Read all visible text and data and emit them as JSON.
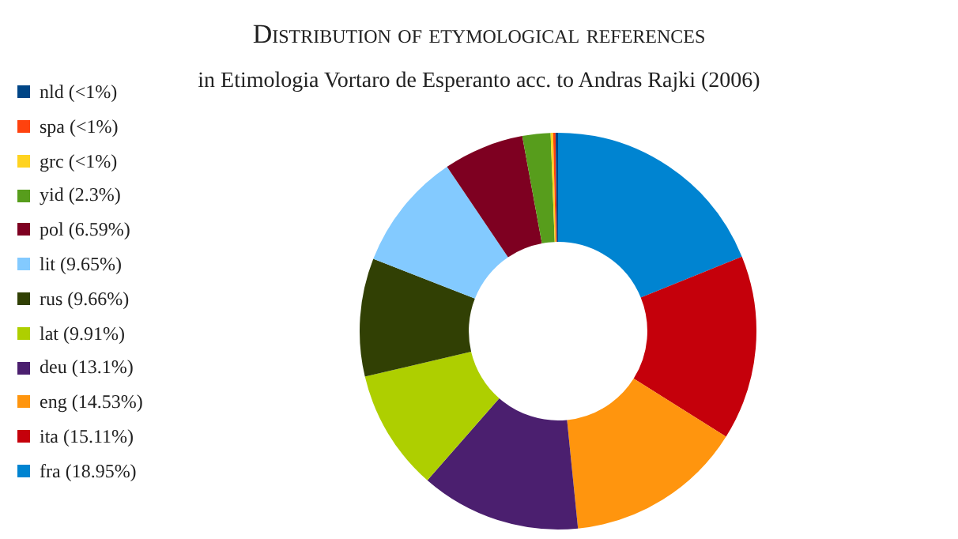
{
  "chart_data": {
    "type": "donut",
    "title": "Distribution of etymological references",
    "subtitle": "in Etimologia Vortaro de Esperanto acc. to Andras Rajki (2006)",
    "categories": [
      "fra (18.95%)",
      "ita (15.11%)",
      "eng (14.53%)",
      "deu (13.1%)",
      "lat (9.91%)",
      "rus (9.66%)",
      "lit (9.65%)",
      "pol (6.59%)",
      "yid (2.3%)",
      "grc (<1%)",
      "spa (<1%)",
      "nld (<1%)"
    ],
    "values": [
      18.95,
      15.11,
      14.53,
      13.1,
      9.91,
      9.66,
      9.65,
      6.59,
      2.3,
      0.2,
      0.2,
      0.2
    ],
    "colors": [
      "#0084d1",
      "#c5000b",
      "#ff950e",
      "#4b1f6f",
      "#aecf00",
      "#314004",
      "#83caff",
      "#7e0021",
      "#579d1c",
      "#ffd320",
      "#ff420e",
      "#004586"
    ],
    "legend": "left"
  }
}
